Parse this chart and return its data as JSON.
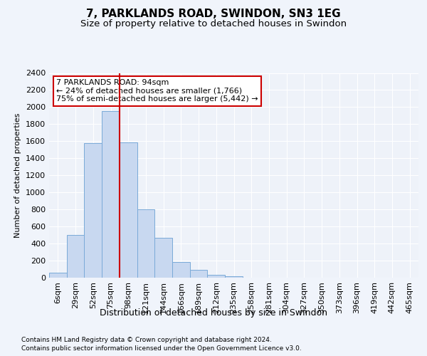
{
  "title1": "7, PARKLANDS ROAD, SWINDON, SN3 1EG",
  "title2": "Size of property relative to detached houses in Swindon",
  "xlabel": "Distribution of detached houses by size in Swindon",
  "ylabel": "Number of detached properties",
  "categories": [
    "6sqm",
    "29sqm",
    "52sqm",
    "75sqm",
    "98sqm",
    "121sqm",
    "144sqm",
    "166sqm",
    "189sqm",
    "212sqm",
    "235sqm",
    "258sqm",
    "281sqm",
    "304sqm",
    "327sqm",
    "350sqm",
    "373sqm",
    "396sqm",
    "419sqm",
    "442sqm",
    "465sqm"
  ],
  "values": [
    55,
    500,
    1580,
    1950,
    1590,
    800,
    470,
    185,
    90,
    30,
    20,
    0,
    0,
    0,
    0,
    0,
    0,
    0,
    0,
    0,
    0
  ],
  "bar_color": "#c8d8f0",
  "bar_edge_color": "#7aaad8",
  "vline_x_index": 4,
  "vline_color": "#cc0000",
  "annotation_text": "7 PARKLANDS ROAD: 94sqm\n← 24% of detached houses are smaller (1,766)\n75% of semi-detached houses are larger (5,442) →",
  "annotation_box_color": "#ffffff",
  "annotation_box_edge": "#cc0000",
  "ylim": [
    0,
    2400
  ],
  "yticks": [
    0,
    200,
    400,
    600,
    800,
    1000,
    1200,
    1400,
    1600,
    1800,
    2000,
    2200,
    2400
  ],
  "footnote1": "Contains HM Land Registry data © Crown copyright and database right 2024.",
  "footnote2": "Contains public sector information licensed under the Open Government Licence v3.0.",
  "background_color": "#f0f4fb",
  "plot_bg_color": "#eef2f9",
  "grid_color": "#ffffff",
  "title1_fontsize": 11,
  "title2_fontsize": 9.5,
  "xlabel_fontsize": 9,
  "ylabel_fontsize": 8,
  "tick_fontsize": 8,
  "annot_fontsize": 8,
  "footnote_fontsize": 6.5
}
